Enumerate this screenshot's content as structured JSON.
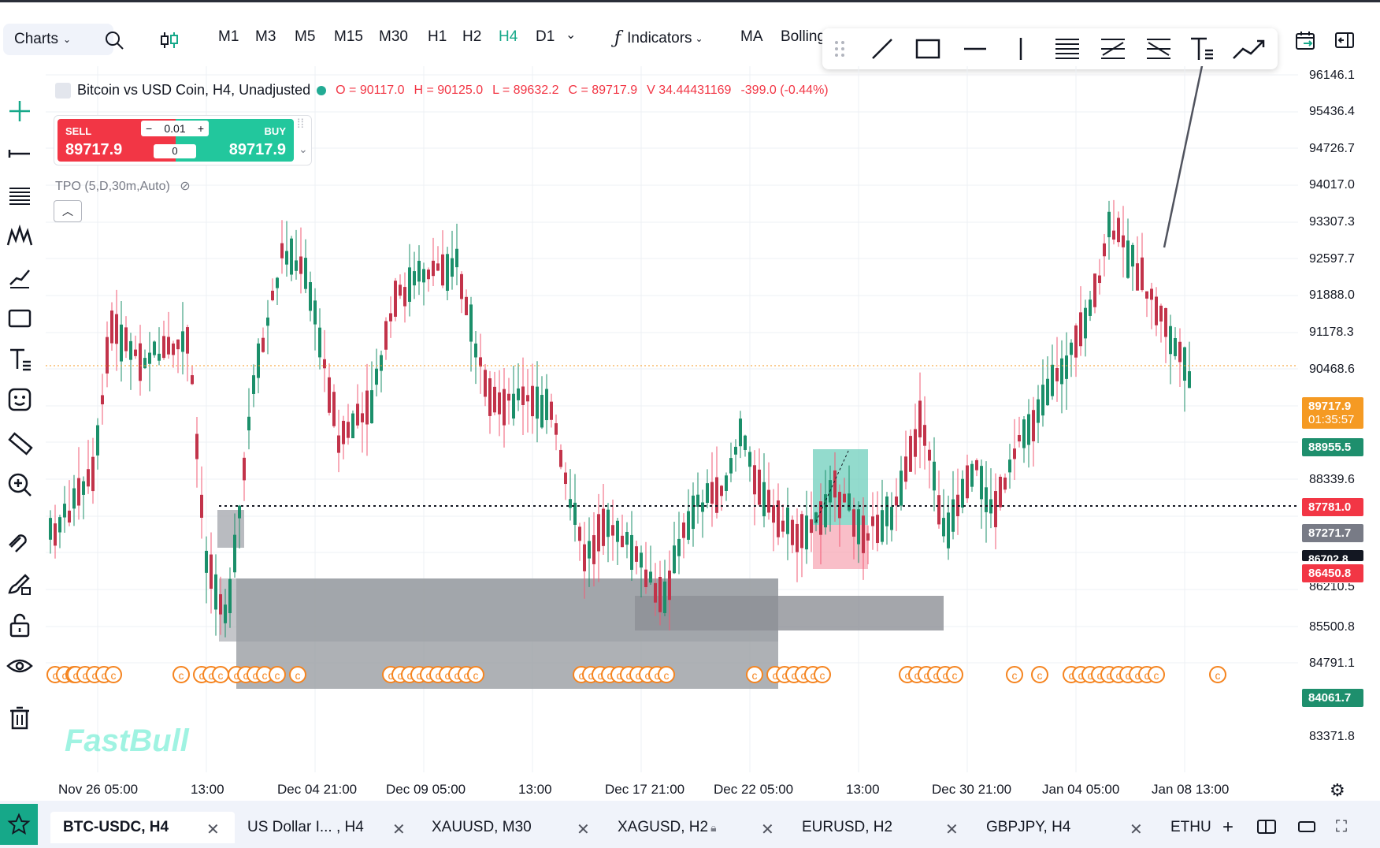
{
  "toolbar": {
    "charts_label": "Charts",
    "timeframes": [
      "M1",
      "M3",
      "M5",
      "M15",
      "M30",
      "H1",
      "H2",
      "H4",
      "D1"
    ],
    "active_timeframe": "H4",
    "indicators_label": "Indicators",
    "ma_label": "MA",
    "bollinger_label": "Bolling"
  },
  "legend": {
    "title": "Bitcoin vs USD Coin, H4, Unadjusted",
    "open": "O = 90117.0",
    "high": "H = 90125.0",
    "low": "L = 89632.2",
    "close": "C = 89717.9",
    "volume": "V 34.44431169",
    "change": "-399.0 (-0.44%)"
  },
  "trade_panel": {
    "sell_label": "SELL",
    "buy_label": "BUY",
    "lot": "0.01",
    "spread": "0",
    "sell_price": "89717.9",
    "buy_price": "89717.9"
  },
  "tpo_label": "TPO (5,D,30m,Auto)",
  "price_axis": [
    "96146.1",
    "95436.4",
    "94726.7",
    "94017.0",
    "93307.3",
    "92597.7",
    "91888.0",
    "91178.3",
    "90468.6",
    "88339.6",
    "85500.8",
    "84791.1",
    "83371.8"
  ],
  "price_tags": {
    "current_price": "89717.9",
    "countdown": "01:35:57",
    "green1": "88955.5",
    "red1": "87781.0",
    "grey1": "87271.7",
    "dark1": "86702.8",
    "red2": "86450.8",
    "hidden1": "86210.5",
    "green2": "84061.7"
  },
  "time_axis": [
    "Nov 26 05:00",
    "13:00",
    "Dec 04 21:00",
    "Dec 09 05:00",
    "13:00",
    "Dec 17 21:00",
    "Dec 22 05:00",
    "13:00",
    "Dec 30 21:00",
    "Jan 04 05:00",
    "Jan 08 13:00"
  ],
  "watermark": "FastBull",
  "tabs": [
    {
      "label": "BTC-USDC, H4",
      "active": true
    },
    {
      "label": "US Dollar I... , H4",
      "active": false
    },
    {
      "label": "XAUUSD, M30",
      "active": false
    },
    {
      "label": "XAGUSD, H2",
      "active": false
    },
    {
      "label": "EURUSD, H2",
      "active": false
    },
    {
      "label": "GBPJPY, H4",
      "active": false
    },
    {
      "label": "ETHU",
      "active": false
    }
  ],
  "colors": {
    "accent": "#16a889",
    "up": "#1b8f6a",
    "down": "#c2334a",
    "tag_orange": "#f59a23",
    "tag_green": "#1e8f6d",
    "tag_red": "#f23645",
    "tag_grey": "#787b86"
  }
}
